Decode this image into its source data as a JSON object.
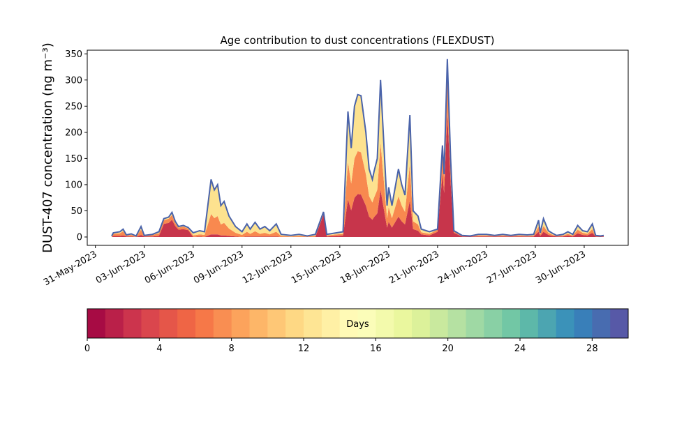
{
  "chart_data": {
    "type": "stacked-area",
    "title": "Age contribution to dust concentrations (FLEXDUST)",
    "ylabel": "DUST-407 concentration (ng m⁻³)",
    "x": [
      "2023-06-01T00:00",
      "2023-06-01T02:24",
      "2023-06-01T12:00",
      "2023-06-01T16:48",
      "2023-06-01T21:36",
      "2023-06-02T04:48",
      "2023-06-02T12:00",
      "2023-06-02T19:12",
      "2023-06-03T00:00",
      "2023-06-03T12:00",
      "2023-06-03T21:36",
      "2023-06-04T04:48",
      "2023-06-04T12:00",
      "2023-06-04T16:48",
      "2023-06-04T21:36",
      "2023-06-05T02:24",
      "2023-06-05T09:36",
      "2023-06-05T16:48",
      "2023-06-06T00:00",
      "2023-06-06T09:36",
      "2023-06-06T16:48",
      "2023-06-07T02:24",
      "2023-06-07T07:12",
      "2023-06-07T12:00",
      "2023-06-07T16:48",
      "2023-06-07T21:36",
      "2023-06-08T04:48",
      "2023-06-08T14:24",
      "2023-06-09T00:00",
      "2023-06-09T07:12",
      "2023-06-09T12:00",
      "2023-06-09T19:12",
      "2023-06-10T02:24",
      "2023-06-10T09:36",
      "2023-06-10T16:48",
      "2023-06-11T02:24",
      "2023-06-11T09:36",
      "2023-06-12T00:00",
      "2023-06-12T12:00",
      "2023-06-13T00:00",
      "2023-06-13T12:00",
      "2023-06-14T00:00",
      "2023-06-14T04:48",
      "2023-06-14T19:12",
      "2023-06-15T04:48",
      "2023-06-15T12:00",
      "2023-06-15T16:48",
      "2023-06-15T21:36",
      "2023-06-16T02:24",
      "2023-06-16T07:12",
      "2023-06-16T14:24",
      "2023-06-16T19:12",
      "2023-06-17T00:00",
      "2023-06-17T02:24",
      "2023-06-17T07:12",
      "2023-06-17T12:00",
      "2023-06-17T16:48",
      "2023-06-17T21:36",
      "2023-06-18T00:00",
      "2023-06-18T04:48",
      "2023-06-18T14:24",
      "2023-06-18T19:12",
      "2023-06-19T00:00",
      "2023-06-19T07:12",
      "2023-06-19T12:00",
      "2023-06-19T19:12",
      "2023-06-20T00:00",
      "2023-06-20T12:00",
      "2023-06-21T00:00",
      "2023-06-21T07:12",
      "2023-06-21T09:36",
      "2023-06-21T14:24",
      "2023-06-21T19:12",
      "2023-06-22T00:00",
      "2023-06-22T12:00",
      "2023-06-23T00:00",
      "2023-06-23T12:00",
      "2023-06-24T00:00",
      "2023-06-24T12:00",
      "2023-06-25T00:00",
      "2023-06-25T12:00",
      "2023-06-26T00:00",
      "2023-06-26T12:00",
      "2023-06-26T21:36",
      "2023-06-27T04:48",
      "2023-06-27T07:12",
      "2023-06-27T12:00",
      "2023-06-27T19:12",
      "2023-06-28T00:00",
      "2023-06-28T07:12",
      "2023-06-28T16:48",
      "2023-06-29T00:00",
      "2023-06-29T07:12",
      "2023-06-29T14:24",
      "2023-06-29T21:36",
      "2023-06-30T04:48",
      "2023-06-30T12:00",
      "2023-06-30T16:48",
      "2023-07-01T00:00",
      "2023-07-01T04:48"
    ],
    "series": [
      {
        "color": "#c7354b",
        "values": [
          0,
          2,
          2,
          3,
          1,
          1,
          0,
          4,
          1,
          1,
          2,
          25,
          27,
          33,
          21,
          14,
          15,
          13,
          0,
          1,
          0,
          5,
          5,
          5,
          3,
          3,
          2,
          1,
          0,
          1,
          1,
          1,
          1,
          1,
          1,
          1,
          0,
          0,
          0,
          0,
          0,
          43,
          1,
          2,
          3,
          72,
          51,
          75,
          82,
          81,
          60,
          39,
          33,
          38,
          45,
          90,
          54,
          18,
          29,
          18,
          39,
          30,
          24,
          70,
          15,
          12,
          5,
          3,
          10,
          122,
          84,
          238,
          105,
          8,
          1,
          1,
          1,
          1,
          1,
          1,
          1,
          1,
          1,
          1,
          10,
          2,
          10,
          4,
          2,
          1,
          1,
          3,
          1,
          7,
          4,
          3,
          8,
          1,
          1,
          1
        ]
      },
      {
        "color": "#f8894f",
        "values": [
          1,
          4,
          5,
          8,
          2,
          3,
          1,
          10,
          1,
          3,
          5,
          7,
          8,
          9,
          6,
          4,
          5,
          3,
          3,
          4,
          4,
          39,
          31,
          35,
          21,
          24,
          14,
          7,
          4,
          9,
          5,
          10,
          5,
          7,
          4,
          9,
          2,
          1,
          2,
          1,
          2,
          3,
          2,
          3,
          3,
          72,
          51,
          75,
          82,
          81,
          60,
          39,
          33,
          37,
          45,
          90,
          54,
          18,
          28,
          18,
          39,
          30,
          24,
          70,
          15,
          12,
          4,
          3,
          4,
          44,
          30,
          85,
          37,
          3,
          1,
          0,
          2,
          2,
          1,
          2,
          1,
          2,
          1,
          2,
          10,
          3,
          11,
          4,
          3,
          1,
          2,
          3,
          2,
          7,
          4,
          3,
          7,
          1,
          0,
          1
        ]
      },
      {
        "color": "#fde28f",
        "values": [
          1,
          2,
          3,
          4,
          1,
          2,
          1,
          6,
          1,
          1,
          3,
          3,
          3,
          5,
          3,
          2,
          2,
          2,
          5,
          7,
          6,
          66,
          54,
          60,
          36,
          41,
          24,
          12,
          6,
          15,
          9,
          17,
          9,
          12,
          7,
          15,
          3,
          2,
          3,
          1,
          3,
          2,
          2,
          3,
          4,
          96,
          68,
          100,
          108,
          108,
          80,
          52,
          44,
          50,
          60,
          120,
          72,
          24,
          38,
          24,
          52,
          40,
          32,
          93,
          20,
          16,
          6,
          4,
          1,
          9,
          6,
          17,
          8,
          1,
          1,
          1,
          2,
          2,
          1,
          2,
          1,
          2,
          2,
          2,
          12,
          3,
          14,
          4,
          3,
          1,
          2,
          4,
          2,
          8,
          4,
          4,
          10,
          1,
          1,
          1
        ]
      }
    ],
    "line_color": "#4a63aa",
    "xlim": [
      "2023-05-30T12:00",
      "2023-07-02T16:48"
    ],
    "xticks": [
      {
        "value": "2023-05-31T00:00",
        "label": "31-May-2023"
      },
      {
        "value": "2023-06-03T00:00",
        "label": "03-Jun-2023"
      },
      {
        "value": "2023-06-06T00:00",
        "label": "06-Jun-2023"
      },
      {
        "value": "2023-06-09T00:00",
        "label": "09-Jun-2023"
      },
      {
        "value": "2023-06-12T00:00",
        "label": "12-Jun-2023"
      },
      {
        "value": "2023-06-15T00:00",
        "label": "15-Jun-2023"
      },
      {
        "value": "2023-06-18T00:00",
        "label": "18-Jun-2023"
      },
      {
        "value": "2023-06-21T00:00",
        "label": "21-Jun-2023"
      },
      {
        "value": "2023-06-24T00:00",
        "label": "24-Jun-2023"
      },
      {
        "value": "2023-06-27T00:00",
        "label": "27-Jun-2023"
      },
      {
        "value": "2023-06-30T00:00",
        "label": "30-Jun-2023"
      }
    ],
    "ylim": [
      -16,
      357
    ],
    "yticks": [
      0,
      50,
      100,
      150,
      200,
      250,
      300,
      350
    ],
    "colorbar": {
      "label": "Days",
      "lim": [
        0,
        30
      ],
      "step": 1,
      "ticks": [
        0,
        4,
        8,
        12,
        16,
        20,
        24,
        28
      ],
      "colormap": [
        "#9e0142",
        "#d53e4f",
        "#f46d43",
        "#fdae61",
        "#fee08b",
        "#ffffbf",
        "#e6f598",
        "#abdda4",
        "#66c2a5",
        "#3288bd",
        "#5e4fa2"
      ]
    }
  }
}
